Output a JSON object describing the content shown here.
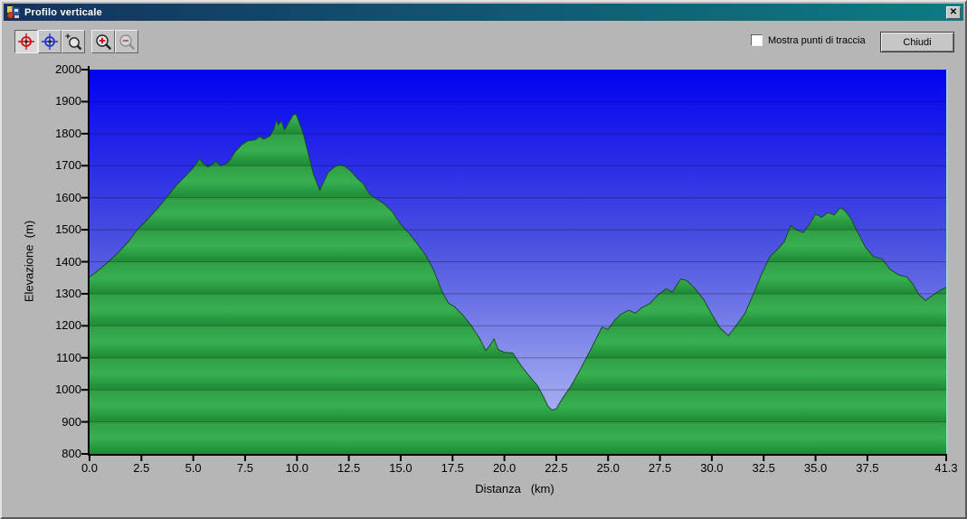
{
  "window": {
    "title": "Profilo verticale",
    "close_glyph": "✕",
    "titlebar_gradient": [
      "#14325e",
      "#0e7b84"
    ],
    "background_color": "#b6b6b6"
  },
  "toolbar": {
    "icons": [
      {
        "name": "red-position-marker-icon",
        "color": "#cc1111",
        "state": "pressed"
      },
      {
        "name": "blue-position-marker-icon",
        "color": "#2233cc",
        "state": "normal"
      },
      {
        "name": "zoom-area-select-icon",
        "color": "#222222",
        "state": "normal"
      },
      {
        "name": "zoom-in-icon",
        "color": "#cc0000",
        "state": "normal"
      },
      {
        "name": "zoom-out-icon",
        "color": "#909090",
        "state": "disabled"
      }
    ]
  },
  "controls": {
    "show_track_points_label": "Mostra punti di traccia",
    "show_track_points_checked": false,
    "close_button_label": "Chiudi"
  },
  "chart_data": {
    "type": "area",
    "title": "",
    "xlabel": "Distanza   (km)",
    "ylabel": "Elevazione  (m)",
    "xlim": [
      0,
      41.3
    ],
    "ylim": [
      800,
      2000
    ],
    "grid": true,
    "x_ticks": [
      0,
      2.5,
      5,
      7.5,
      10,
      12.5,
      15,
      17.5,
      20,
      22.5,
      25,
      27.5,
      30,
      32.5,
      35,
      37.5,
      41.3
    ],
    "x_tick_labels": [
      "0.0",
      "2.5",
      "5.0",
      "7.5",
      "10.0",
      "12.5",
      "15.0",
      "17.5",
      "20.0",
      "22.5",
      "25.0",
      "27.5",
      "30.0",
      "32.5",
      "35.0",
      "37.5",
      "41.3"
    ],
    "y_ticks": [
      800,
      900,
      1000,
      1100,
      1200,
      1300,
      1400,
      1500,
      1600,
      1700,
      1800,
      1900,
      2000
    ],
    "y_tick_labels": [
      "800",
      "900",
      "1000",
      "1100",
      "1200",
      "1300",
      "1400",
      "1500",
      "1600",
      "1700",
      "1800",
      "1900",
      "2000"
    ],
    "colors": {
      "sky_gradient_top": "#0202f0",
      "sky_gradient_mid": "#4a50e0",
      "sky_gradient_low": "#9099ec",
      "sky_gradient_bottom": "#bbc2f5",
      "terrain_band_top": "#2f9e45",
      "terrain_band_mid": "#38b051",
      "terrain_band_bottom": "#1f8c36",
      "terrain_edge": "#1a4d26",
      "gridline": "rgba(0,0,20,0.30)",
      "axis": "#000000",
      "plot_right_border": "#8fd8da"
    },
    "profile": [
      [
        0,
        1352
      ],
      [
        0.4,
        1372
      ],
      [
        0.9,
        1400
      ],
      [
        1.4,
        1430
      ],
      [
        1.9,
        1465
      ],
      [
        2.3,
        1500
      ],
      [
        2.8,
        1533
      ],
      [
        3.3,
        1568
      ],
      [
        3.7,
        1600
      ],
      [
        4.2,
        1640
      ],
      [
        4.6,
        1666
      ],
      [
        5,
        1693
      ],
      [
        5.3,
        1722
      ],
      [
        5.5,
        1706
      ],
      [
        5.7,
        1696
      ],
      [
        5.9,
        1703
      ],
      [
        6.1,
        1713
      ],
      [
        6.3,
        1700
      ],
      [
        6.6,
        1706
      ],
      [
        6.8,
        1720
      ],
      [
        7,
        1742
      ],
      [
        7.3,
        1763
      ],
      [
        7.6,
        1777
      ],
      [
        8,
        1781
      ],
      [
        8.2,
        1791
      ],
      [
        8.4,
        1783
      ],
      [
        8.7,
        1793
      ],
      [
        8.9,
        1816
      ],
      [
        9,
        1841
      ],
      [
        9.1,
        1827
      ],
      [
        9.25,
        1839
      ],
      [
        9.4,
        1811
      ],
      [
        9.6,
        1834
      ],
      [
        9.8,
        1857
      ],
      [
        9.95,
        1862
      ],
      [
        10.1,
        1836
      ],
      [
        10.3,
        1801
      ],
      [
        10.5,
        1749
      ],
      [
        10.8,
        1673
      ],
      [
        11.1,
        1623
      ],
      [
        11.3,
        1651
      ],
      [
        11.5,
        1679
      ],
      [
        11.8,
        1696
      ],
      [
        12,
        1703
      ],
      [
        12.3,
        1699
      ],
      [
        12.6,
        1683
      ],
      [
        12.9,
        1661
      ],
      [
        13.2,
        1643
      ],
      [
        13.5,
        1611
      ],
      [
        13.8,
        1598
      ],
      [
        14.2,
        1581
      ],
      [
        14.6,
        1556
      ],
      [
        15,
        1517
      ],
      [
        15.4,
        1489
      ],
      [
        15.8,
        1456
      ],
      [
        16.2,
        1421
      ],
      [
        16.6,
        1373
      ],
      [
        17,
        1306
      ],
      [
        17.3,
        1271
      ],
      [
        17.6,
        1259
      ],
      [
        18,
        1233
      ],
      [
        18.4,
        1201
      ],
      [
        18.8,
        1161
      ],
      [
        19.1,
        1123
      ],
      [
        19.35,
        1143
      ],
      [
        19.5,
        1159
      ],
      [
        19.7,
        1126
      ],
      [
        20,
        1117
      ],
      [
        20.4,
        1115
      ],
      [
        20.8,
        1076
      ],
      [
        21.2,
        1043
      ],
      [
        21.6,
        1013
      ],
      [
        21.9,
        976
      ],
      [
        22.1,
        949
      ],
      [
        22.3,
        937
      ],
      [
        22.5,
        941
      ],
      [
        22.8,
        973
      ],
      [
        23.2,
        1011
      ],
      [
        23.6,
        1056
      ],
      [
        24,
        1106
      ],
      [
        24.4,
        1156
      ],
      [
        24.7,
        1196
      ],
      [
        25,
        1189
      ],
      [
        25.3,
        1216
      ],
      [
        25.6,
        1236
      ],
      [
        26,
        1249
      ],
      [
        26.3,
        1239
      ],
      [
        26.6,
        1256
      ],
      [
        27,
        1269
      ],
      [
        27.4,
        1296
      ],
      [
        27.8,
        1316
      ],
      [
        28.1,
        1306
      ],
      [
        28.5,
        1346
      ],
      [
        28.8,
        1341
      ],
      [
        29.2,
        1316
      ],
      [
        29.6,
        1283
      ],
      [
        30,
        1236
      ],
      [
        30.4,
        1193
      ],
      [
        30.8,
        1169
      ],
      [
        31.2,
        1203
      ],
      [
        31.6,
        1239
      ],
      [
        32,
        1299
      ],
      [
        32.4,
        1361
      ],
      [
        32.8,
        1416
      ],
      [
        33.2,
        1441
      ],
      [
        33.5,
        1463
      ],
      [
        33.8,
        1513
      ],
      [
        34.1,
        1499
      ],
      [
        34.4,
        1491
      ],
      [
        34.7,
        1516
      ],
      [
        35,
        1549
      ],
      [
        35.3,
        1539
      ],
      [
        35.6,
        1554
      ],
      [
        35.9,
        1546
      ],
      [
        36.2,
        1569
      ],
      [
        36.4,
        1561
      ],
      [
        36.7,
        1536
      ],
      [
        37,
        1496
      ],
      [
        37.4,
        1446
      ],
      [
        37.8,
        1416
      ],
      [
        38.2,
        1409
      ],
      [
        38.6,
        1376
      ],
      [
        39,
        1359
      ],
      [
        39.4,
        1353
      ],
      [
        39.7,
        1329
      ],
      [
        40,
        1297
      ],
      [
        40.3,
        1279
      ],
      [
        40.6,
        1293
      ],
      [
        41,
        1311
      ],
      [
        41.3,
        1320
      ]
    ]
  }
}
